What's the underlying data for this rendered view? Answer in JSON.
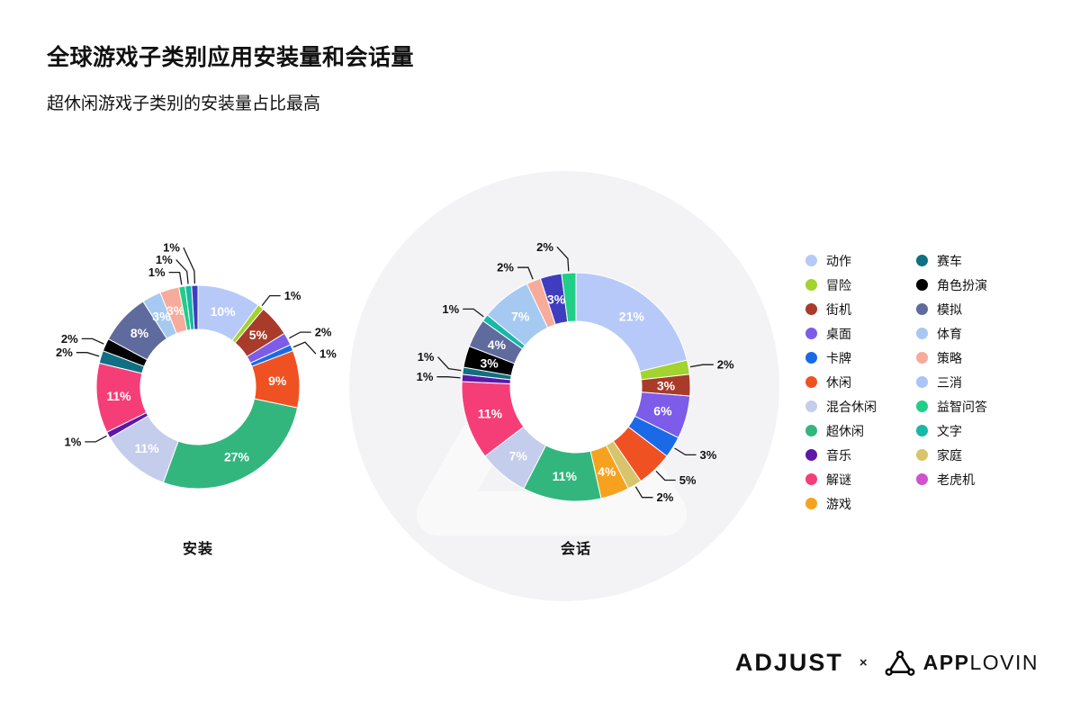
{
  "page": {
    "title": "全球游戏子类别应用安装量和会话量",
    "subtitle": "超休闲游戏子类别的安装量占比最高"
  },
  "chart_data": [
    {
      "type": "pie",
      "variant": "donut",
      "title": "安装",
      "unit": "%",
      "segments": [
        {
          "label": "动作",
          "value": 10,
          "color": "#b7c9f9",
          "label_inside": true
        },
        {
          "label": "冒险",
          "value": 1,
          "color": "#a2d32f",
          "label_inside": false
        },
        {
          "label": "街机",
          "value": 5,
          "color": "#a83b29",
          "label_inside": true
        },
        {
          "label": "桌面",
          "value": 2,
          "color": "#7c5ce8",
          "label_inside": false
        },
        {
          "label": "卡牌",
          "value": 1,
          "color": "#1a6ae8",
          "label_inside": false
        },
        {
          "label": "休闲",
          "value": 9,
          "color": "#f05123",
          "label_inside": true
        },
        {
          "label": "超休闲",
          "value": 27,
          "color": "#33b67e",
          "label_inside": true
        },
        {
          "label": "混合休闲",
          "value": 11,
          "color": "#c4cdec",
          "label_inside": true
        },
        {
          "label": "音乐",
          "value": 1,
          "color": "#5e17a9",
          "label_inside": false
        },
        {
          "label": "解谜",
          "value": 11,
          "color": "#f53e78",
          "label_inside": true
        },
        {
          "label": "赛车",
          "value": 2,
          "color": "#0f7083",
          "label_inside": false
        },
        {
          "label": "角色扮演",
          "value": 2,
          "color": "#000000",
          "label_inside": false
        },
        {
          "label": "模拟",
          "value": 8,
          "color": "#5f6b9d",
          "label_inside": true
        },
        {
          "label": "体育",
          "value": 3,
          "color": "#a6c9f2",
          "label_inside": true
        },
        {
          "label": "策略",
          "value": 3,
          "color": "#f7ab9b",
          "label_inside": true
        },
        {
          "label": "益智问答",
          "value": 1,
          "color": "#21ce87",
          "label_inside": false
        },
        {
          "label": "文字",
          "value": 1,
          "color": "#16b8a7",
          "label_inside": false
        },
        {
          "label": "三消",
          "value": 1,
          "color": "#3f3cc0",
          "label_inside": false
        }
      ]
    },
    {
      "type": "pie",
      "variant": "donut",
      "title": "会话",
      "unit": "%",
      "segments": [
        {
          "label": "动作",
          "value": 21,
          "color": "#b7c9f9",
          "label_inside": true
        },
        {
          "label": "冒险",
          "value": 2,
          "color": "#a2d32f",
          "label_inside": false
        },
        {
          "label": "街机",
          "value": 3,
          "color": "#a83b29",
          "label_inside": true
        },
        {
          "label": "桌面",
          "value": 6,
          "color": "#7c5ce8",
          "label_inside": true
        },
        {
          "label": "卡牌",
          "value": 3,
          "color": "#1a6ae8",
          "label_inside": false
        },
        {
          "label": "休闲",
          "value": 5,
          "color": "#f05123",
          "label_inside": false
        },
        {
          "label": "家庭",
          "value": 2,
          "color": "#d8c46a",
          "label_inside": false
        },
        {
          "label": "游戏",
          "value": 4,
          "color": "#f6a21e",
          "label_inside": true
        },
        {
          "label": "超休闲",
          "value": 11,
          "color": "#33b67e",
          "label_inside": true
        },
        {
          "label": "混合休闲",
          "value": 7,
          "color": "#c4cdec",
          "label_inside": true
        },
        {
          "label": "解谜",
          "value": 11,
          "color": "#f53e78",
          "label_inside": true
        },
        {
          "label": "音乐",
          "value": 1,
          "color": "#5e17a9",
          "label_inside": false
        },
        {
          "label": "赛车",
          "value": 1,
          "color": "#0f7083",
          "label_inside": false
        },
        {
          "label": "角色扮演",
          "value": 3,
          "color": "#000000",
          "label_inside": true
        },
        {
          "label": "模拟",
          "value": 4,
          "color": "#5f6b9d",
          "label_inside": true
        },
        {
          "label": "文字",
          "value": 1,
          "color": "#16b8a7",
          "label_inside": false
        },
        {
          "label": "体育",
          "value": 7,
          "color": "#a6c9f2",
          "label_inside": true
        },
        {
          "label": "策略",
          "value": 2,
          "color": "#f7ab9b",
          "label_inside": false
        },
        {
          "label": "三消",
          "value": 3,
          "color": "#3f3cc0",
          "label_inside": true
        },
        {
          "label": "益智问答",
          "value": 2,
          "color": "#21ce87",
          "label_inside": false
        }
      ]
    }
  ],
  "legend": {
    "columns": [
      [
        {
          "label": "动作",
          "color": "#b7c9f9"
        },
        {
          "label": "冒险",
          "color": "#a2d32f"
        },
        {
          "label": "街机",
          "color": "#a83b29"
        },
        {
          "label": "桌面",
          "color": "#7c5ce8"
        },
        {
          "label": "卡牌",
          "color": "#1a6ae8"
        },
        {
          "label": "休闲",
          "color": "#f05123"
        },
        {
          "label": "混合休闲",
          "color": "#c4cdec"
        },
        {
          "label": "超休闲",
          "color": "#33b67e"
        },
        {
          "label": "音乐",
          "color": "#5e17a9"
        },
        {
          "label": "解谜",
          "color": "#f53e78"
        },
        {
          "label": "游戏",
          "color": "#f6a21e"
        }
      ],
      [
        {
          "label": "赛车",
          "color": "#0f7083"
        },
        {
          "label": "角色扮演",
          "color": "#000000"
        },
        {
          "label": "模拟",
          "color": "#5f6b9d"
        },
        {
          "label": "体育",
          "color": "#a6c9f2"
        },
        {
          "label": "策略",
          "color": "#f7ab9b"
        },
        {
          "label": "三消",
          "color": "#a9c4f5"
        },
        {
          "label": "益智问答",
          "color": "#21ce87"
        },
        {
          "label": "文字",
          "color": "#16b8a7"
        },
        {
          "label": "家庭",
          "color": "#d8c46a"
        },
        {
          "label": "老虎机",
          "color": "#cf52cf"
        }
      ]
    ]
  },
  "footer": {
    "adjust": "ADJUST",
    "separator": "×",
    "applovin_strong": "APP",
    "applovin_light": "LOVIN"
  }
}
